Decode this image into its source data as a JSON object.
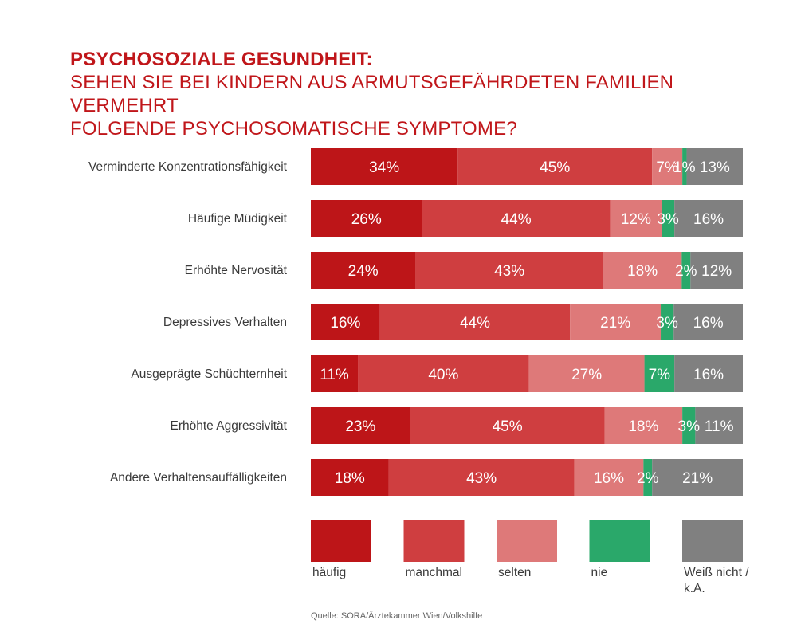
{
  "title": "PSYCHOSOZIALE GESUNDHEIT:",
  "subtitle_line1": "SEHEN SIE BEI KINDERN AUS ARMUTSGEFÄHRDETEN FAMILIEN VERMEHRT",
  "subtitle_line2": "FOLGENDE PSYCHOSOMATISCHE SYMPTOME?",
  "source": "Quelle: SORA/Ärztekammer Wien/Volkshilfe",
  "chart_data": {
    "type": "bar",
    "orientation": "horizontal",
    "stacked": true,
    "normalized": true,
    "categories": [
      "Verminderte Konzentrationsfähigkeit",
      "Häufige Müdigkeit",
      "Erhöhte Nervosität",
      "Depressives Verhalten",
      "Ausgeprägte Schüchternheit",
      "Erhöhte Aggressivität",
      "Andere Verhaltensauffälligkeiten"
    ],
    "series": [
      {
        "name": "häufig",
        "color": "#bd1518",
        "values": [
          34,
          26,
          24,
          16,
          11,
          23,
          18
        ]
      },
      {
        "name": "manchmal",
        "color": "#cf3e40",
        "values": [
          45,
          44,
          43,
          44,
          40,
          45,
          43
        ]
      },
      {
        "name": "selten",
        "color": "#de7979",
        "values": [
          7,
          12,
          18,
          21,
          27,
          18,
          16
        ]
      },
      {
        "name": "nie",
        "color": "#2aa86a",
        "values": [
          1,
          3,
          2,
          3,
          7,
          3,
          2
        ]
      },
      {
        "name": "Weiß nicht / k.A.",
        "color": "#808080",
        "values": [
          13,
          16,
          12,
          16,
          16,
          11,
          21
        ]
      }
    ],
    "value_suffix": "%",
    "legend_labels": [
      "häufig",
      "manchmal",
      "selten",
      "nie",
      "Weiß nicht /",
      "k.A."
    ],
    "legend_position": "bottom",
    "grid": false
  }
}
